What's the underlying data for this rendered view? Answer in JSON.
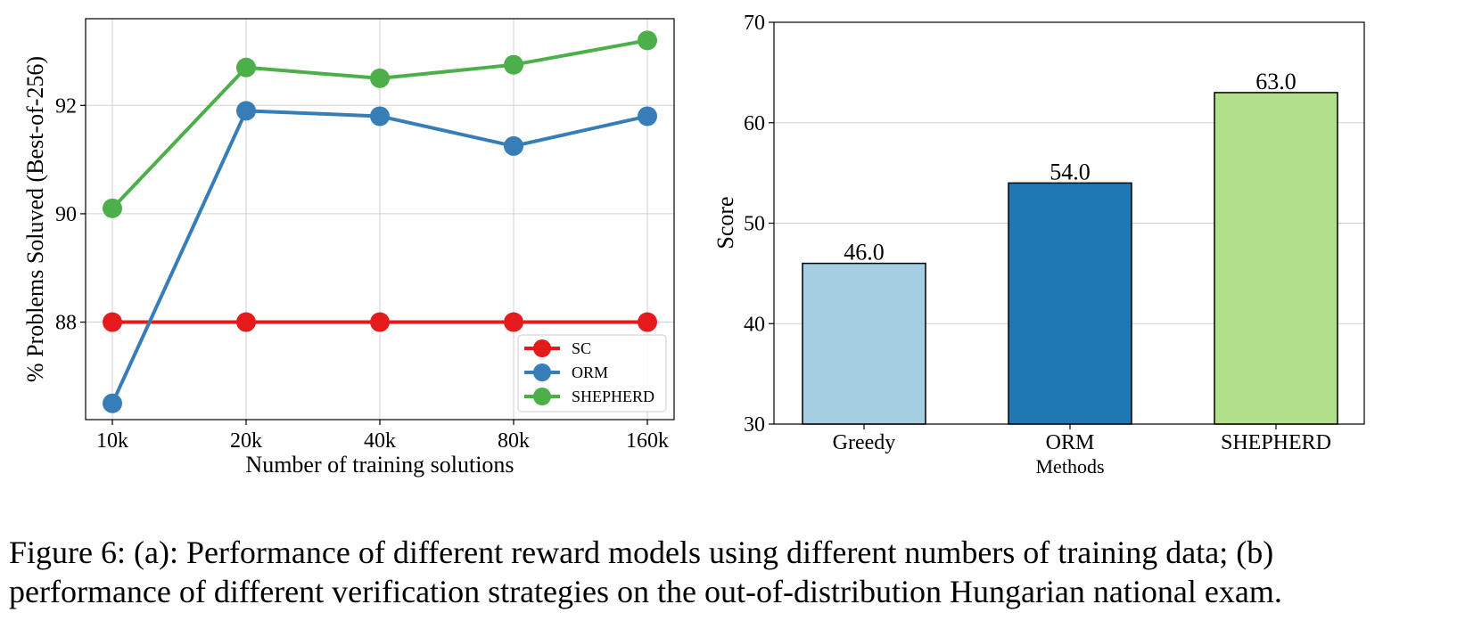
{
  "chart_data": [
    {
      "type": "line",
      "x": [
        "10k",
        "20k",
        "40k",
        "80k",
        "160k"
      ],
      "xlabel": "Number of training solutions",
      "ylabel": "% Problems Soluved (Best-of-256)",
      "ylim": [
        86.2,
        93.6
      ],
      "yticks": [
        88,
        90,
        92
      ],
      "grid": true,
      "legend_position": "lower-right",
      "series": [
        {
          "name": "SC",
          "color": "#e41a1c",
          "values": [
            88.0,
            88.0,
            88.0,
            88.0,
            88.0
          ]
        },
        {
          "name": "ORM",
          "color": "#377eb8",
          "values": [
            86.5,
            91.9,
            91.8,
            91.25,
            91.8
          ]
        },
        {
          "name": "SHEPHERD",
          "color": "#4daf4a",
          "values": [
            90.1,
            92.7,
            92.5,
            92.75,
            93.2
          ]
        }
      ]
    },
    {
      "type": "bar",
      "categories": [
        "Greedy",
        "ORM",
        "SHEPHERD"
      ],
      "values": [
        46.0,
        54.0,
        63.0
      ],
      "value_labels": [
        "46.0",
        "54.0",
        "63.0"
      ],
      "colors": [
        "#a6cee3",
        "#1f78b4",
        "#b2df8a"
      ],
      "xlabel": "Methods",
      "ylabel": "Score",
      "ylim": [
        30,
        70
      ],
      "yticks": [
        30,
        40,
        50,
        60,
        70
      ],
      "grid": true
    }
  ],
  "caption": {
    "line1": "Figure 6: (a): Performance of different reward models using different numbers of training data; (b)",
    "line2": "performance of different verification strategies on the out-of-distribution Hungarian national exam."
  }
}
